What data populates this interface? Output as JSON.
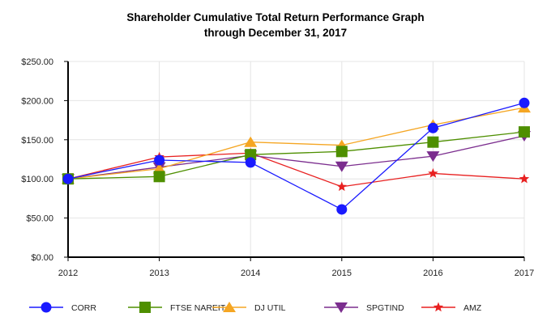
{
  "chart_data": {
    "type": "line",
    "title": "Shareholder Cumulative Total Return Performance Graph",
    "subtitle": "through December 31, 2017",
    "categories": [
      "2012",
      "2013",
      "2014",
      "2015",
      "2016",
      "2017"
    ],
    "ylim": [
      0,
      250
    ],
    "yticks": [
      "$0.00",
      "$50.00",
      "$100.00",
      "$150.00",
      "$200.00",
      "$250.00"
    ],
    "grid": true,
    "legend_placement": "bottom",
    "series": [
      {
        "name": "CORR",
        "color": "#1a1aff",
        "marker": "circle",
        "values": [
          100,
          124,
          121,
          61,
          165,
          197
        ]
      },
      {
        "name": "FTSE NAREIT",
        "color": "#4e8f00",
        "marker": "square",
        "values": [
          100,
          103,
          131,
          135,
          147,
          160
        ]
      },
      {
        "name": "DJ UTIL",
        "color": "#f5a623",
        "marker": "triangle-up",
        "values": [
          100,
          113,
          147,
          143,
          169,
          191
        ]
      },
      {
        "name": "SPGTIND",
        "color": "#7b2d8e",
        "marker": "triangle-down",
        "values": [
          100,
          115,
          130,
          116,
          129,
          155
        ]
      },
      {
        "name": "AMZ",
        "color": "#e82020",
        "marker": "star",
        "values": [
          100,
          128,
          133,
          90,
          107,
          100
        ]
      }
    ]
  }
}
